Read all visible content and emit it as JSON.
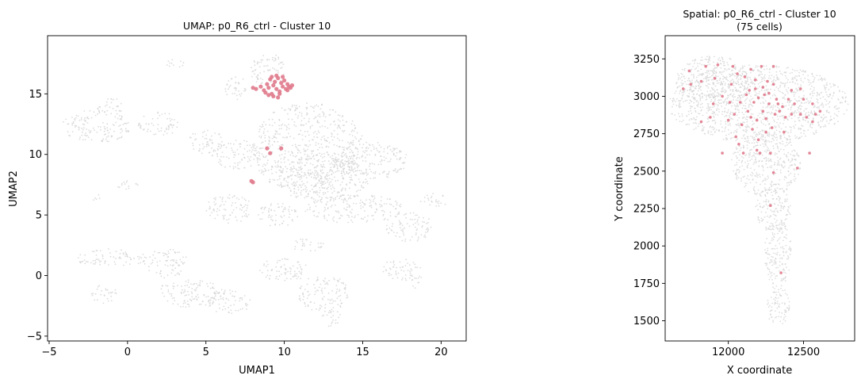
{
  "chart_data": [
    {
      "type": "scatter",
      "title": "UMAP: p0_R6_ctrl - Cluster 10",
      "xlabel": "UMAP1",
      "ylabel": "UMAP2",
      "xlim": [
        -5.1,
        21.6
      ],
      "ylim": [
        -5.4,
        19.8
      ],
      "xticks": [
        -5,
        0,
        5,
        10,
        15,
        20
      ],
      "yticks": [
        -5,
        0,
        5,
        10,
        15
      ],
      "background_color": "#d3d3d3",
      "highlight_color": "#e07a8c",
      "background_regions": [
        {
          "x": 11.5,
          "y": 10.5,
          "rx": 3.6,
          "ry": 3.8
        },
        {
          "x": 12.5,
          "y": 8.0,
          "rx": 3.0,
          "ry": 2.0
        },
        {
          "x": 15.5,
          "y": 9.5,
          "rx": 2.4,
          "ry": 1.6
        },
        {
          "x": 7.0,
          "y": 10.0,
          "rx": 1.6,
          "ry": 1.2
        },
        {
          "x": 5.0,
          "y": 11.0,
          "rx": 1.2,
          "ry": 1.0
        },
        {
          "x": 2.0,
          "y": 12.5,
          "rx": 1.3,
          "ry": 1.0
        },
        {
          "x": -2.0,
          "y": 12.3,
          "rx": 2.2,
          "ry": 1.4
        },
        {
          "x": -1.0,
          "y": 14.0,
          "rx": 1.0,
          "ry": 0.6
        },
        {
          "x": 9.0,
          "y": 17.0,
          "rx": 1.2,
          "ry": 1.3
        },
        {
          "x": 7.0,
          "y": 15.5,
          "rx": 0.8,
          "ry": 1.0
        },
        {
          "x": 3.0,
          "y": 17.5,
          "rx": 0.6,
          "ry": 0.4
        },
        {
          "x": 14.5,
          "y": 5.5,
          "rx": 3.2,
          "ry": 1.2
        },
        {
          "x": 18.0,
          "y": 4.0,
          "rx": 1.5,
          "ry": 1.2
        },
        {
          "x": 19.5,
          "y": 6.2,
          "rx": 0.9,
          "ry": 0.6
        },
        {
          "x": 6.5,
          "y": 5.5,
          "rx": 1.5,
          "ry": 1.2
        },
        {
          "x": 9.5,
          "y": 5.0,
          "rx": 1.4,
          "ry": 1.0
        },
        {
          "x": -1.0,
          "y": 1.5,
          "rx": 2.6,
          "ry": 0.7
        },
        {
          "x": 2.5,
          "y": 1.0,
          "rx": 1.4,
          "ry": 1.2
        },
        {
          "x": 4.0,
          "y": -1.5,
          "rx": 2.2,
          "ry": 1.2
        },
        {
          "x": 6.5,
          "y": -2.2,
          "rx": 1.4,
          "ry": 1.0
        },
        {
          "x": 10.0,
          "y": 0.5,
          "rx": 1.6,
          "ry": 1.0
        },
        {
          "x": 12.5,
          "y": -1.5,
          "rx": 1.6,
          "ry": 1.6
        },
        {
          "x": 11.5,
          "y": 2.5,
          "rx": 1.0,
          "ry": 0.6
        },
        {
          "x": 17.5,
          "y": 0.5,
          "rx": 1.2,
          "ry": 1.0
        },
        {
          "x": 13.0,
          "y": -3.5,
          "rx": 0.6,
          "ry": 0.8
        },
        {
          "x": 0.0,
          "y": 7.5,
          "rx": 0.8,
          "ry": 0.4
        },
        {
          "x": -2.0,
          "y": 6.5,
          "rx": 0.4,
          "ry": 0.3
        },
        {
          "x": -1.5,
          "y": -1.5,
          "rx": 0.8,
          "ry": 0.8
        },
        {
          "x": 18.5,
          "y": -0.5,
          "rx": 0.4,
          "ry": 0.6
        }
      ],
      "highlight_points": [
        [
          8.2,
          15.4
        ],
        [
          8.5,
          15.6
        ],
        [
          8.7,
          15.3
        ],
        [
          8.9,
          15.8
        ],
        [
          9.0,
          15.5
        ],
        [
          9.1,
          16.2
        ],
        [
          9.2,
          15.0
        ],
        [
          9.3,
          15.7
        ],
        [
          9.4,
          16.0
        ],
        [
          9.5,
          15.4
        ],
        [
          9.6,
          16.3
        ],
        [
          9.7,
          15.2
        ],
        [
          9.8,
          15.9
        ],
        [
          9.9,
          15.6
        ],
        [
          10.0,
          16.1
        ],
        [
          10.1,
          15.4
        ],
        [
          10.2,
          15.8
        ],
        [
          10.3,
          15.6
        ],
        [
          10.4,
          15.5
        ],
        [
          9.0,
          14.9
        ],
        [
          9.3,
          14.8
        ],
        [
          9.6,
          14.7
        ],
        [
          8.8,
          15.1
        ],
        [
          9.5,
          16.5
        ],
        [
          9.9,
          16.4
        ],
        [
          10.5,
          15.7
        ],
        [
          8.0,
          15.5
        ],
        [
          9.2,
          16.4
        ],
        [
          9.7,
          15.0
        ],
        [
          10.2,
          15.3
        ],
        [
          8.9,
          10.5
        ],
        [
          9.1,
          10.1
        ],
        [
          9.8,
          10.5
        ],
        [
          7.9,
          7.8
        ],
        [
          8.0,
          7.7
        ]
      ]
    },
    {
      "type": "scatter",
      "title": "Spatial: p0_R6_ctrl - Cluster 10",
      "subtitle": "(75 cells)",
      "xlabel": "X coordinate",
      "ylabel": "Y coordinate",
      "xlim": [
        11580,
        12840
      ],
      "ylim": [
        1365,
        3405
      ],
      "xticks": [
        12000,
        12500
      ],
      "yticks": [
        1500,
        1750,
        2000,
        2250,
        2500,
        2750,
        3000,
        3250
      ],
      "background_color": "#d3d3d3",
      "highlight_color": "#e07a8c",
      "background_regions": [
        {
          "x": 12200,
          "y": 2950,
          "rx": 600,
          "ry": 260
        },
        {
          "x": 11900,
          "y": 3100,
          "rx": 250,
          "ry": 170
        },
        {
          "x": 12250,
          "y": 2550,
          "rx": 230,
          "ry": 220
        },
        {
          "x": 12300,
          "y": 2250,
          "rx": 120,
          "ry": 160
        },
        {
          "x": 12330,
          "y": 1950,
          "rx": 90,
          "ry": 230
        },
        {
          "x": 12330,
          "y": 1600,
          "rx": 80,
          "ry": 140
        }
      ],
      "highlight_points": [
        [
          11700,
          3050
        ],
        [
          11740,
          3170
        ],
        [
          11750,
          3080
        ],
        [
          11820,
          2830
        ],
        [
          11850,
          3200
        ],
        [
          11880,
          2860
        ],
        [
          11910,
          3120
        ],
        [
          11930,
          3210
        ],
        [
          11960,
          3000
        ],
        [
          12000,
          2840
        ],
        [
          12020,
          3080
        ],
        [
          12040,
          2880
        ],
        [
          12060,
          3150
        ],
        [
          12080,
          2960
        ],
        [
          12100,
          2620
        ],
        [
          12120,
          3010
        ],
        [
          12130,
          2900
        ],
        [
          12150,
          3180
        ],
        [
          12160,
          2780
        ],
        [
          12170,
          2960
        ],
        [
          12180,
          3050
        ],
        [
          12190,
          2840
        ],
        [
          12200,
          2990
        ],
        [
          12210,
          2620
        ],
        [
          12220,
          3200
        ],
        [
          12230,
          2900
        ],
        [
          12240,
          3010
        ],
        [
          12250,
          2760
        ],
        [
          12260,
          3100
        ],
        [
          12270,
          2950
        ],
        [
          12280,
          2620
        ],
        [
          12290,
          2790
        ],
        [
          12300,
          3080
        ],
        [
          12310,
          2880
        ],
        [
          12320,
          2980
        ],
        [
          12340,
          2900
        ],
        [
          12360,
          2930
        ],
        [
          12380,
          2860
        ],
        [
          12400,
          2980
        ],
        [
          12420,
          2880
        ],
        [
          12440,
          2950
        ],
        [
          12460,
          2520
        ],
        [
          12480,
          2880
        ],
        [
          12500,
          2980
        ],
        [
          12520,
          2860
        ],
        [
          12540,
          2620
        ],
        [
          12560,
          2830
        ],
        [
          12580,
          2880
        ],
        [
          12610,
          2900
        ],
        [
          12350,
          1820
        ],
        [
          12280,
          2270
        ],
        [
          12300,
          2490
        ],
        [
          12190,
          2640
        ],
        [
          12070,
          2680
        ],
        [
          11960,
          2620
        ],
        [
          12110,
          3130
        ],
        [
          12230,
          3060
        ],
        [
          12010,
          2960
        ],
        [
          12150,
          2860
        ],
        [
          12270,
          3020
        ],
        [
          12330,
          2950
        ],
        [
          12420,
          3040
        ],
        [
          11900,
          2950
        ],
        [
          12050,
          2730
        ],
        [
          12200,
          2710
        ],
        [
          12370,
          2760
        ],
        [
          12480,
          3050
        ],
        [
          12030,
          3200
        ],
        [
          12300,
          3200
        ],
        [
          12180,
          3110
        ],
        [
          12090,
          2810
        ],
        [
          12250,
          2850
        ],
        [
          12140,
          3040
        ],
        [
          11820,
          3100
        ],
        [
          12560,
          2950
        ]
      ]
    }
  ]
}
